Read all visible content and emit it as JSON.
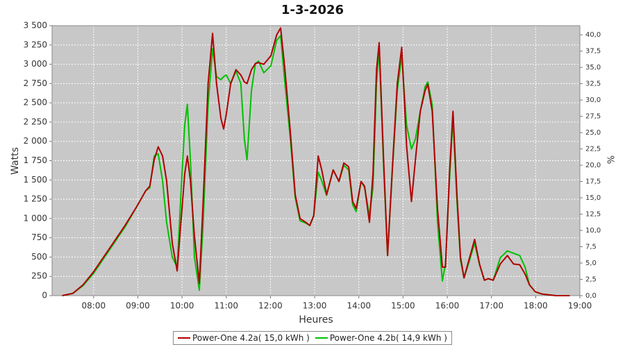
{
  "chart_data": {
    "type": "line",
    "title": "1-3-2026",
    "x_label": "Heures",
    "y_label": "Watts",
    "y2_label": "%",
    "grid": true,
    "legend": "bottom",
    "xlim": [
      7.06,
      19.0
    ],
    "xticks": [
      {
        "value": 8,
        "label": "08:00"
      },
      {
        "value": 9,
        "label": "09:00"
      },
      {
        "value": 10,
        "label": "10:00"
      },
      {
        "value": 11,
        "label": "11:00"
      },
      {
        "value": 12,
        "label": "12:00"
      },
      {
        "value": 13,
        "label": "13:00"
      },
      {
        "value": 14,
        "label": "14:00"
      },
      {
        "value": 15,
        "label": "15:00"
      },
      {
        "value": 16,
        "label": "16:00"
      },
      {
        "value": 17,
        "label": "17:00"
      },
      {
        "value": 18,
        "label": "18:00"
      },
      {
        "value": 19,
        "label": "19:00"
      }
    ],
    "ylim": [
      0,
      3500
    ],
    "yticks": [
      0,
      250,
      500,
      750,
      {
        "value": 1000,
        "label": "1 000"
      },
      {
        "value": 1250,
        "label": "1 250"
      },
      {
        "value": 1500,
        "label": "1 500"
      },
      {
        "value": 1750,
        "label": "1 750"
      },
      {
        "value": 2000,
        "label": "2 000"
      },
      {
        "value": 2250,
        "label": "2 250"
      },
      {
        "value": 2500,
        "label": "2 500"
      },
      {
        "value": 2750,
        "label": "2 750"
      },
      {
        "value": 3000,
        "label": "3 000"
      },
      {
        "value": 3250,
        "label": "3 250"
      },
      {
        "value": 3500,
        "label": "3 500"
      }
    ],
    "y2lim": [
      0,
      41.4
    ],
    "y2ticks": [
      {
        "value": 0,
        "label": "0,0"
      },
      {
        "value": 2.5,
        "label": "2,5"
      },
      {
        "value": 5,
        "label": "5,0"
      },
      {
        "value": 7.5,
        "label": "7,5"
      },
      {
        "value": 10,
        "label": "10,0"
      },
      {
        "value": 12.5,
        "label": "12,5"
      },
      {
        "value": 15,
        "label": "15,0"
      },
      {
        "value": 17.5,
        "label": "17,5"
      },
      {
        "value": 20,
        "label": "20,0"
      },
      {
        "value": 22.5,
        "label": "22,5"
      },
      {
        "value": 25,
        "label": "25,0"
      },
      {
        "value": 27.5,
        "label": "27,5"
      },
      {
        "value": 30,
        "label": "30,0"
      },
      {
        "value": 32.5,
        "label": "32,5"
      },
      {
        "value": 35,
        "label": "35,0"
      },
      {
        "value": 37.5,
        "label": "37,5"
      },
      {
        "value": 40,
        "label": "40,0"
      }
    ],
    "x": [
      7.29,
      7.53,
      7.76,
      8.0,
      8.39,
      8.71,
      8.97,
      9.18,
      9.27,
      9.37,
      9.46,
      9.56,
      9.65,
      9.78,
      9.89,
      10.0,
      10.06,
      10.12,
      10.19,
      10.28,
      10.39,
      10.47,
      10.59,
      10.69,
      10.78,
      10.88,
      10.94,
      11.0,
      11.1,
      11.22,
      11.33,
      11.41,
      11.47,
      11.57,
      11.66,
      11.73,
      11.85,
      12.01,
      12.14,
      12.23,
      12.32,
      12.45,
      12.56,
      12.67,
      12.8,
      12.89,
      12.98,
      13.08,
      13.16,
      13.27,
      13.42,
      13.55,
      13.66,
      13.77,
      13.86,
      13.94,
      14.05,
      14.13,
      14.24,
      14.32,
      14.4,
      14.46,
      14.56,
      14.65,
      14.76,
      14.87,
      14.97,
      15.08,
      15.19,
      15.28,
      15.39,
      15.5,
      15.56,
      15.66,
      15.78,
      15.89,
      15.96,
      16.05,
      16.13,
      16.22,
      16.3,
      16.38,
      16.49,
      16.62,
      16.73,
      16.84,
      16.93,
      17.04,
      17.2,
      17.36,
      17.5,
      17.64,
      17.76,
      17.86,
      17.99,
      18.15,
      18.46,
      18.77
    ],
    "series": [
      {
        "name": "Power-One 4.2a( 15,0 kWh )",
        "color": "#b00000",
        "values": [
          0,
          30,
          140,
          310,
          640,
          910,
          1150,
          1360,
          1420,
          1760,
          1930,
          1810,
          1490,
          680,
          320,
          1130,
          1580,
          1810,
          1490,
          770,
          160,
          1130,
          2750,
          3400,
          2750,
          2300,
          2160,
          2350,
          2750,
          2930,
          2860,
          2770,
          2750,
          2930,
          3010,
          3020,
          3000,
          3110,
          3380,
          3470,
          2980,
          2120,
          1310,
          1000,
          950,
          910,
          1040,
          1810,
          1630,
          1310,
          1630,
          1480,
          1720,
          1670,
          1220,
          1130,
          1480,
          1420,
          950,
          1580,
          2930,
          3280,
          1760,
          520,
          1670,
          2750,
          3220,
          1940,
          1220,
          1760,
          2390,
          2660,
          2740,
          2390,
          1130,
          370,
          370,
          1580,
          2390,
          1310,
          500,
          230,
          460,
          730,
          410,
          200,
          220,
          200,
          410,
          520,
          410,
          400,
          280,
          140,
          50,
          20,
          0,
          0
        ]
      },
      {
        "name": "Power-One 4.2b( 14,9 kWh )",
        "color": "#00c000",
        "values": [
          0,
          30,
          130,
          290,
          620,
          890,
          1150,
          1360,
          1400,
          1810,
          1840,
          1490,
          950,
          500,
          370,
          1580,
          2210,
          2480,
          1760,
          500,
          70,
          860,
          2480,
          3200,
          2840,
          2800,
          2840,
          2860,
          2750,
          2910,
          2750,
          2030,
          1760,
          2660,
          3010,
          3040,
          2890,
          2980,
          3310,
          3370,
          2800,
          2030,
          1270,
          970,
          940,
          910,
          1030,
          1600,
          1490,
          1300,
          1630,
          1480,
          1690,
          1630,
          1180,
          1090,
          1480,
          1400,
          1040,
          1400,
          2750,
          3200,
          1670,
          520,
          1630,
          2660,
          3110,
          2210,
          1900,
          2030,
          2390,
          2710,
          2770,
          2480,
          950,
          190,
          410,
          1490,
          2300,
          1220,
          460,
          230,
          430,
          680,
          400,
          200,
          220,
          200,
          490,
          580,
          550,
          520,
          370,
          140,
          50,
          20,
          0,
          0
        ]
      }
    ]
  }
}
